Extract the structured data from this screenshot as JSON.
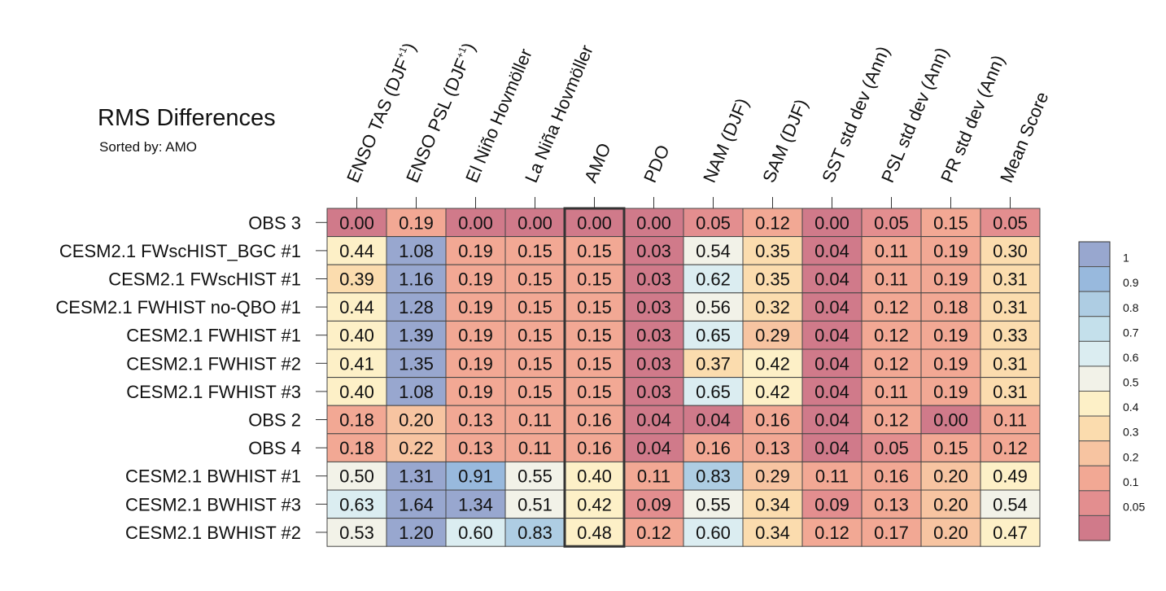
{
  "chart_data": {
    "type": "heatmap",
    "title": "RMS Differences",
    "subtitle": "Sorted by: AMO",
    "highlight_column": "AMO",
    "columns": [
      {
        "label": "ENSO TAS (DJF",
        "sup": "+1",
        "suffix": ")"
      },
      {
        "label": "ENSO PSL (DJF",
        "sup": "+1",
        "suffix": ")"
      },
      {
        "label": "El Niño Hovmöller"
      },
      {
        "label": "La Niña Hovmöller"
      },
      {
        "label": "AMO"
      },
      {
        "label": "PDO"
      },
      {
        "label": "NAM (DJF)"
      },
      {
        "label": "SAM (DJF)"
      },
      {
        "label": "SST std dev (Ann)"
      },
      {
        "label": "PSL std dev (Ann)"
      },
      {
        "label": "PR std dev (Ann)"
      },
      {
        "label": "Mean Score"
      }
    ],
    "rows": [
      "OBS 3",
      "CESM2.1 FWscHIST_BGC #1",
      "CESM2.1 FWscHIST #1",
      "CESM2.1 FWHIST no-QBO #1",
      "CESM2.1 FWHIST #1",
      "CESM2.1 FWHIST #2",
      "CESM2.1 FWHIST #3",
      "OBS 2",
      "OBS 4",
      "CESM2.1 BWHIST #1",
      "CESM2.1 BWHIST #3",
      "CESM2.1 BWHIST #2"
    ],
    "values": [
      [
        "0.00",
        "0.19",
        "0.00",
        "0.00",
        "0.00",
        "0.00",
        "0.05",
        "0.12",
        "0.00",
        "0.05",
        "0.15",
        "0.05"
      ],
      [
        "0.44",
        "1.08",
        "0.19",
        "0.15",
        "0.15",
        "0.03",
        "0.54",
        "0.35",
        "0.04",
        "0.11",
        "0.19",
        "0.30"
      ],
      [
        "0.39",
        "1.16",
        "0.19",
        "0.15",
        "0.15",
        "0.03",
        "0.62",
        "0.35",
        "0.04",
        "0.11",
        "0.19",
        "0.31"
      ],
      [
        "0.44",
        "1.28",
        "0.19",
        "0.15",
        "0.15",
        "0.03",
        "0.56",
        "0.32",
        "0.04",
        "0.12",
        "0.18",
        "0.31"
      ],
      [
        "0.40",
        "1.39",
        "0.19",
        "0.15",
        "0.15",
        "0.03",
        "0.65",
        "0.29",
        "0.04",
        "0.12",
        "0.19",
        "0.33"
      ],
      [
        "0.41",
        "1.35",
        "0.19",
        "0.15",
        "0.15",
        "0.03",
        "0.37",
        "0.42",
        "0.04",
        "0.12",
        "0.19",
        "0.31"
      ],
      [
        "0.40",
        "1.08",
        "0.19",
        "0.15",
        "0.15",
        "0.03",
        "0.65",
        "0.42",
        "0.04",
        "0.11",
        "0.19",
        "0.31"
      ],
      [
        "0.18",
        "0.20",
        "0.13",
        "0.11",
        "0.16",
        "0.04",
        "0.04",
        "0.16",
        "0.04",
        "0.12",
        "0.00",
        "0.11"
      ],
      [
        "0.18",
        "0.22",
        "0.13",
        "0.11",
        "0.16",
        "0.04",
        "0.16",
        "0.13",
        "0.04",
        "0.05",
        "0.15",
        "0.12"
      ],
      [
        "0.50",
        "1.31",
        "0.91",
        "0.55",
        "0.40",
        "0.11",
        "0.83",
        "0.29",
        "0.11",
        "0.16",
        "0.20",
        "0.49"
      ],
      [
        "0.63",
        "1.64",
        "1.34",
        "0.51",
        "0.42",
        "0.09",
        "0.55",
        "0.34",
        "0.09",
        "0.13",
        "0.20",
        "0.54"
      ],
      [
        "0.53",
        "1.20",
        "0.60",
        "0.83",
        "0.48",
        "0.12",
        "0.60",
        "0.34",
        "0.12",
        "0.17",
        "0.20",
        "0.47"
      ]
    ],
    "legend": {
      "type": "colorbar",
      "placement": "right",
      "bounds": [
        0,
        0.05,
        0.1,
        0.2,
        0.3,
        0.4,
        0.5,
        0.6,
        0.7,
        0.8,
        0.9,
        1
      ],
      "labels": [
        "0.05",
        "0.1",
        "0.2",
        "0.3",
        "0.4",
        "0.5",
        "0.6",
        "0.7",
        "0.8",
        "0.9",
        "1"
      ],
      "colors": [
        "#d07a8a",
        "#e38e8f",
        "#f2a894",
        "#f7c4a1",
        "#fbdcae",
        "#fdf0c7",
        "#f2f2e8",
        "#dbedf1",
        "#c4e0eb",
        "#aecde3",
        "#98b9dd",
        "#98a7cf"
      ]
    }
  }
}
